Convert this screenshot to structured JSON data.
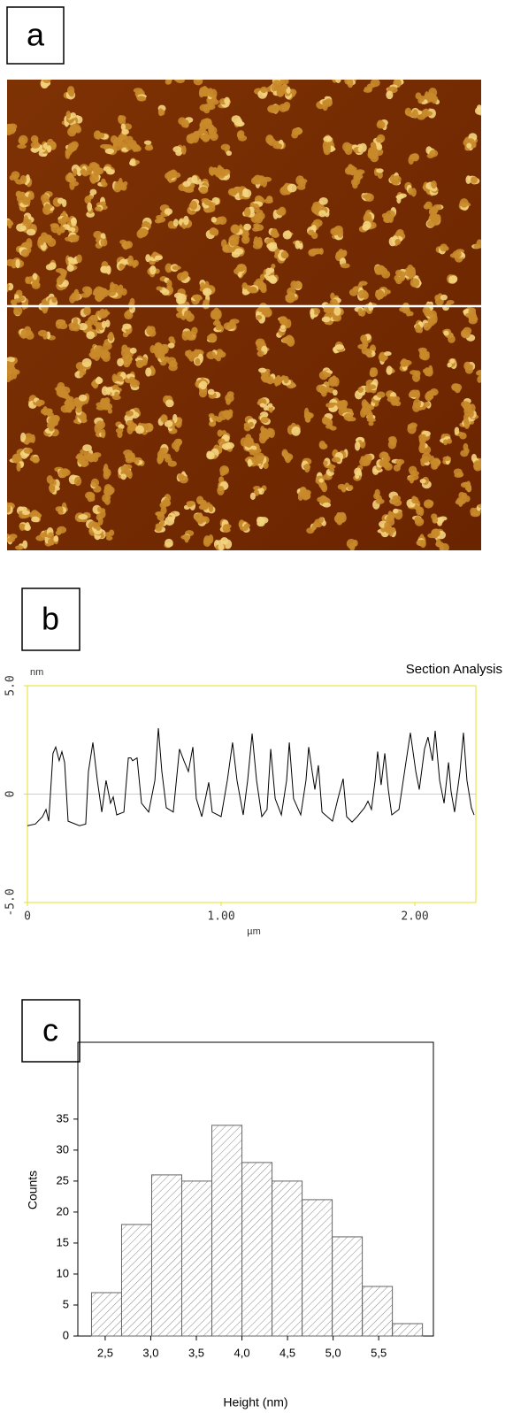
{
  "chart_data": [
    {
      "type": "image",
      "label": "a"
    },
    {
      "type": "line",
      "label": "b",
      "title": "Section Analysis",
      "ylabel": "nm",
      "xlabel": "µm",
      "frame_color": "#e6e020",
      "zero_line": true,
      "xlim": [
        0,
        2.315
      ],
      "ylim": [
        -5,
        5
      ],
      "xticks": [
        0,
        {
          "value": 1,
          "label": "1.00"
        },
        {
          "value": 2,
          "label": "2.00"
        }
      ],
      "yticks": [
        {
          "value": 5,
          "label": "5.0"
        },
        0,
        {
          "value": -5,
          "label": "-5.0"
        }
      ],
      "x": [
        0,
        0.041,
        0.078,
        0.096,
        0.11,
        0.132,
        0.146,
        0.164,
        0.178,
        0.192,
        0.21,
        0.269,
        0.301,
        0.315,
        0.338,
        0.361,
        0.384,
        0.406,
        0.429,
        0.443,
        0.461,
        0.498,
        0.521,
        0.534,
        0.543,
        0.566,
        0.589,
        0.626,
        0.658,
        0.676,
        0.694,
        0.717,
        0.753,
        0.785,
        0.808,
        0.831,
        0.854,
        0.872,
        0.9,
        0.936,
        0.954,
        1.0,
        1.032,
        1.059,
        1.082,
        1.114,
        1.137,
        1.16,
        1.183,
        1.21,
        1.237,
        1.256,
        1.279,
        1.311,
        1.338,
        1.352,
        1.374,
        1.411,
        1.438,
        1.452,
        1.47,
        1.484,
        1.502,
        1.521,
        1.548,
        1.575,
        1.603,
        1.63,
        1.648,
        1.676,
        1.703,
        1.74,
        1.758,
        1.776,
        1.795,
        1.808,
        1.826,
        1.845,
        1.863,
        1.881,
        1.918,
        1.954,
        1.977,
        2.005,
        2.023,
        2.05,
        2.068,
        2.091,
        2.105,
        2.128,
        2.151,
        2.174,
        2.187,
        2.205,
        2.233,
        2.251,
        2.269,
        2.292,
        2.306
      ],
      "series": [
        {
          "color": "#000000",
          "values": [
            -1.46,
            -1.38,
            -1.04,
            -0.71,
            -1.25,
            1.88,
            2.17,
            1.54,
            1.96,
            1.46,
            -1.25,
            -1.46,
            -1.38,
            1.04,
            2.38,
            0.63,
            -0.83,
            0.63,
            -0.42,
            -0.13,
            -0.96,
            -0.83,
            1.67,
            1.67,
            1.54,
            1.67,
            -0.42,
            -0.83,
            0.63,
            3.04,
            1.04,
            -0.63,
            -0.83,
            2.08,
            1.54,
            1.04,
            2.17,
            -0.21,
            -1.04,
            0.54,
            -0.83,
            -1.04,
            0.63,
            2.38,
            0.63,
            -0.96,
            0.63,
            2.79,
            0.63,
            -1.04,
            -0.71,
            2.08,
            -0.21,
            -0.96,
            0.63,
            2.38,
            -0.21,
            -0.96,
            0.63,
            2.17,
            1.04,
            0.21,
            1.33,
            -0.83,
            -1.04,
            -1.25,
            -0.21,
            0.71,
            -1.04,
            -1.29,
            -1.04,
            -0.63,
            -0.33,
            -0.71,
            0.63,
            1.96,
            0.42,
            1.88,
            0.21,
            -0.96,
            -0.71,
            1.46,
            2.83,
            1.04,
            0.21,
            2.08,
            2.63,
            1.54,
            2.92,
            0.63,
            -0.42,
            1.46,
            0.13,
            -0.83,
            1.04,
            2.83,
            0.63,
            -0.63,
            -0.96
          ]
        }
      ]
    },
    {
      "type": "histogram",
      "label": "c",
      "xlabel": "Height (nm)",
      "ylabel": "Counts",
      "color": "#666666",
      "xlim": [
        2.2,
        6.1
      ],
      "ylim": [
        0,
        47.4
      ],
      "xticks": [
        {
          "value": 2.5,
          "label": "2,5"
        },
        {
          "value": 3,
          "label": "3,0"
        },
        {
          "value": 3.5,
          "label": "3,5"
        },
        {
          "value": 4,
          "label": "4,0"
        },
        {
          "value": 4.5,
          "label": "4,5"
        },
        {
          "value": 5,
          "label": "5,0"
        },
        {
          "value": 5.5,
          "label": "5,5"
        }
      ],
      "yticks": [
        0,
        5,
        10,
        15,
        20,
        25,
        30,
        35
      ],
      "bins": [
        2.35,
        2.68,
        3.01,
        3.34,
        3.67,
        4.0,
        4.33,
        4.66,
        4.99,
        5.32,
        5.65,
        5.98
      ],
      "values": [
        7,
        18,
        26,
        25,
        34,
        28,
        25,
        22,
        16,
        8,
        2
      ]
    }
  ]
}
